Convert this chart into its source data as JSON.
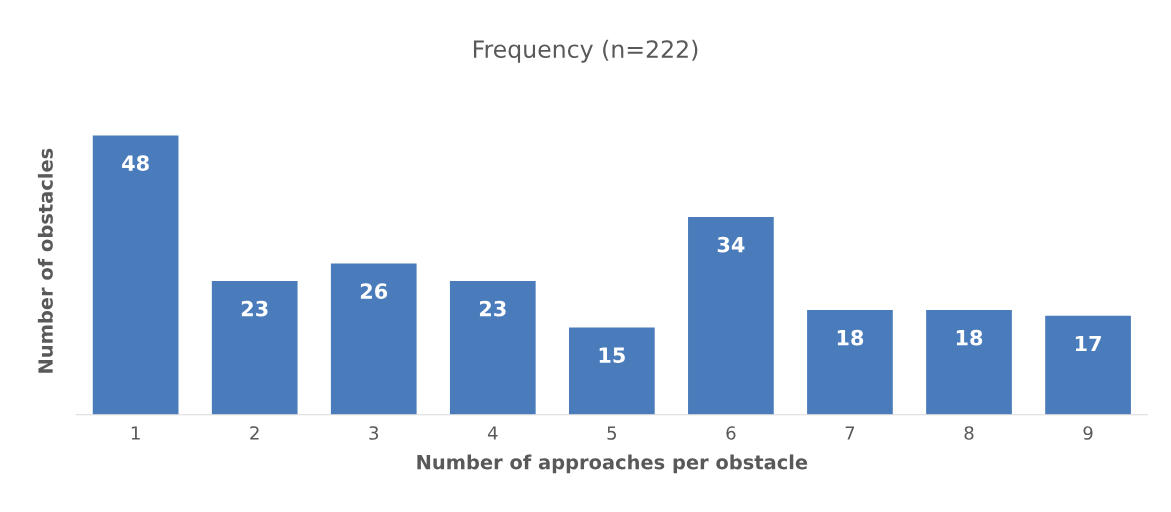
{
  "chart_data": {
    "type": "bar",
    "title": "Frequency (n=222)",
    "xlabel": "Number of approaches per obstacle",
    "ylabel": "Number of obstacles",
    "categories": [
      "1",
      "2",
      "3",
      "4",
      "5",
      "6",
      "7",
      "8",
      "9"
    ],
    "values": [
      48,
      23,
      26,
      23,
      15,
      34,
      18,
      18,
      17
    ],
    "color": "#4a7cbb",
    "data_labels": true,
    "grid": false,
    "legend": false,
    "tick_labels": "x"
  }
}
